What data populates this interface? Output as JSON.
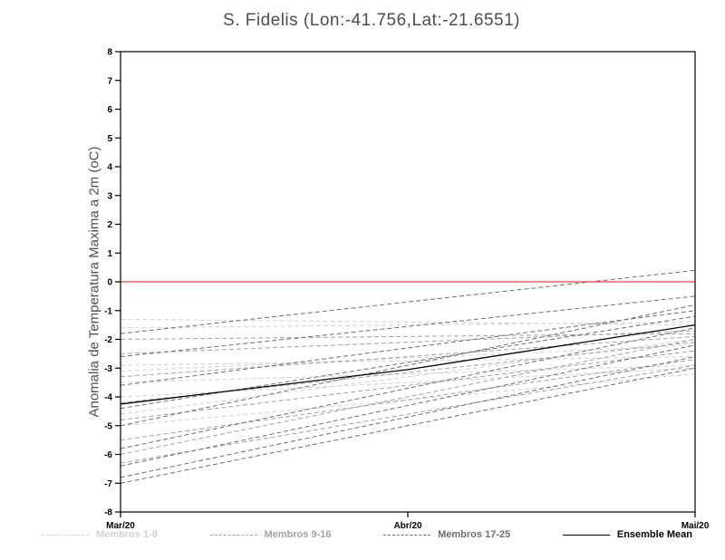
{
  "chart_data": {
    "type": "line",
    "title": "S. Fidelis (Lon:-41.756,Lat:-21.6551)",
    "ylabel": "Anomalia de Temperatura Maxima a 2m (oC)",
    "xlabel": "",
    "x_tick_labels": [
      "Mar/20",
      "Abr/20",
      "Mai/20"
    ],
    "ylim": [
      -8,
      8
    ],
    "y_tick_step": 1,
    "grid": false,
    "zero_line": {
      "y": 0,
      "color": "#e84040"
    },
    "groups": [
      {
        "name": "Membros 1-8",
        "color": "#d2d2d2",
        "line_style": "dashed",
        "members": [
          [
            -1.3,
            -1.5
          ],
          [
            -1.6,
            -1.4
          ],
          [
            -2.9,
            -2.6
          ],
          [
            -3.1,
            -2.2
          ],
          [
            -3.5,
            -2.9
          ],
          [
            -4.0,
            -3.0
          ],
          [
            -4.6,
            -2.0
          ],
          [
            -5.0,
            -3.2
          ]
        ]
      },
      {
        "name": "Membros 9-16",
        "color": "#a2a2a2",
        "line_style": "dashed",
        "members": [
          [
            -2.0,
            -1.8
          ],
          [
            -2.5,
            -1.7
          ],
          [
            -3.3,
            -1.9
          ],
          [
            -4.2,
            -2.1
          ],
          [
            -4.8,
            -2.4
          ],
          [
            -5.5,
            -2.7
          ],
          [
            -6.0,
            -2.0
          ],
          [
            -6.3,
            -2.9
          ]
        ]
      },
      {
        "name": "Membros 17-25",
        "color": "#6e6e6e",
        "line_style": "dashed",
        "members": [
          [
            -1.8,
            0.4
          ],
          [
            -2.6,
            -0.5
          ],
          [
            -3.6,
            -1.0
          ],
          [
            -4.4,
            -1.2
          ],
          [
            -5.0,
            -0.8
          ],
          [
            -5.8,
            -1.6
          ],
          [
            -6.4,
            -2.2
          ],
          [
            -6.8,
            -2.6
          ],
          [
            -7.0,
            -3.0
          ]
        ]
      }
    ],
    "ensemble_mean": {
      "name": "Ensemble Mean",
      "color": "#000000",
      "line_style": "solid",
      "values": [
        -4.25,
        -3.05,
        -1.5
      ]
    }
  },
  "legend": [
    {
      "label": "Membros 1-8",
      "color": "#d2d2d2",
      "dashed": true
    },
    {
      "label": "Membros 9-16",
      "color": "#a2a2a2",
      "dashed": true
    },
    {
      "label": "Membros 17-25",
      "color": "#6e6e6e",
      "dashed": true
    },
    {
      "label": "Ensemble Mean",
      "color": "#000000",
      "dashed": false
    }
  ]
}
